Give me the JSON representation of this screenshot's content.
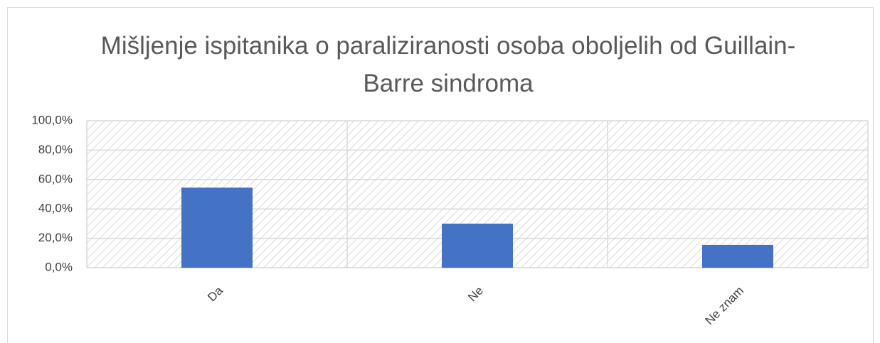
{
  "chart_data": {
    "type": "bar",
    "title": "Mišljenje ispitanika o paraliziranosti osoba oboljelih od Guillain-Barre sindroma",
    "categories": [
      "Da",
      "Ne",
      "Ne znam"
    ],
    "values": [
      54.5,
      30,
      15.5
    ],
    "color": "#4472c4",
    "ylim": [
      0,
      100
    ],
    "yticks": [
      {
        "value": 0,
        "label": "0,0%"
      },
      {
        "value": 20,
        "label": "20,0%"
      },
      {
        "value": 40,
        "label": "40,0%"
      },
      {
        "value": 60,
        "label": "60,0%"
      },
      {
        "value": 80,
        "label": "80,0%"
      },
      {
        "value": 100,
        "label": "100,0%"
      }
    ],
    "grid": true
  }
}
